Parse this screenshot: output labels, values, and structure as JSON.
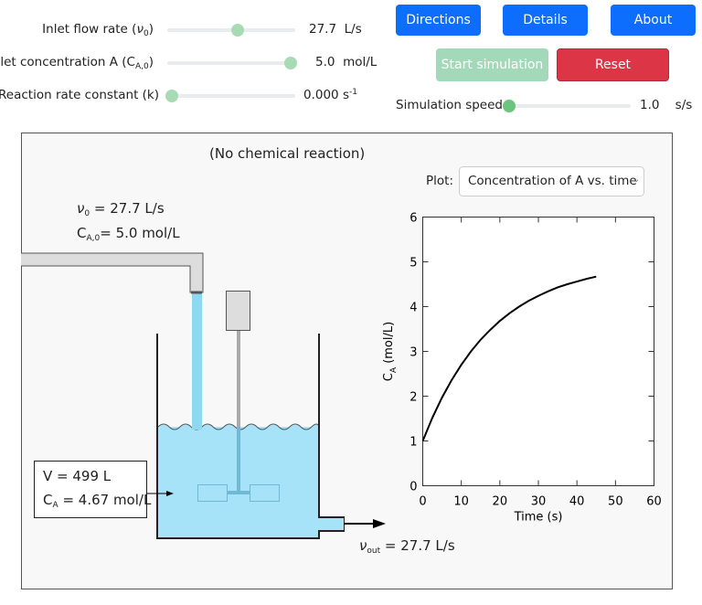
{
  "controls": {
    "flow": {
      "label": "Inlet flow rate (",
      "symbol": "ν",
      "sub": "0",
      "close": ")",
      "value": "27.7",
      "unit": "L/s"
    },
    "conc": {
      "label": "Inlet concentration A (C",
      "sub": "A,0",
      "close": ")",
      "value": "5.0",
      "unit": "mol/L"
    },
    "rate": {
      "label": "Reaction rate constant (k)",
      "value": "0.000",
      "unit": "s",
      "sup": "-1"
    },
    "speed": {
      "label": "Simulation speed",
      "value": "1.0",
      "unit": "s/s"
    }
  },
  "buttons": {
    "directions": "Directions",
    "details": "Details",
    "about": "About",
    "start": "Start simulation",
    "reset": "Reset"
  },
  "diagram": {
    "title": "(No chemical reaction)",
    "inlet_flow": {
      "symbol": "ν",
      "sub": "0",
      "text": "= 27.7 L/s"
    },
    "inlet_conc": {
      "symbol": "C",
      "sub": "A,0",
      "text": "= 5.0 mol/L"
    },
    "volume": "V = 499 L",
    "tank_conc": {
      "symbol": "C",
      "sub": "A",
      "text": "= 4.67 mol/L"
    },
    "outlet": {
      "symbol": "ν",
      "sub": "out",
      "text": "= 27.7 L/s"
    }
  },
  "plot_select": {
    "label": "Plot:",
    "option": "Concentration of A vs. time"
  },
  "plot": {
    "type": "line",
    "ylabel": {
      "symbol": "C",
      "sub": "A",
      "text": " (mol/L)"
    },
    "xlabel": "Time (s)",
    "x": [
      0,
      2.5,
      5,
      7.5,
      10,
      12.5,
      15,
      17.5,
      20,
      22.5,
      25,
      27.5,
      30,
      32.5,
      35,
      37.5,
      40,
      42.5,
      45
    ],
    "values": [
      1,
      1.52,
      1.97,
      2.36,
      2.7,
      3.0,
      3.26,
      3.48,
      3.68,
      3.85,
      4.0,
      4.13,
      4.24,
      4.34,
      4.43,
      4.5,
      4.56,
      4.62,
      4.67
    ],
    "color": "#000000",
    "xlim": [
      0,
      60
    ],
    "ylim": [
      0,
      6
    ],
    "xticks": [
      0,
      10,
      20,
      30,
      40,
      50,
      60
    ],
    "yticks": [
      0,
      1,
      2,
      3,
      4,
      5,
      6
    ]
  }
}
